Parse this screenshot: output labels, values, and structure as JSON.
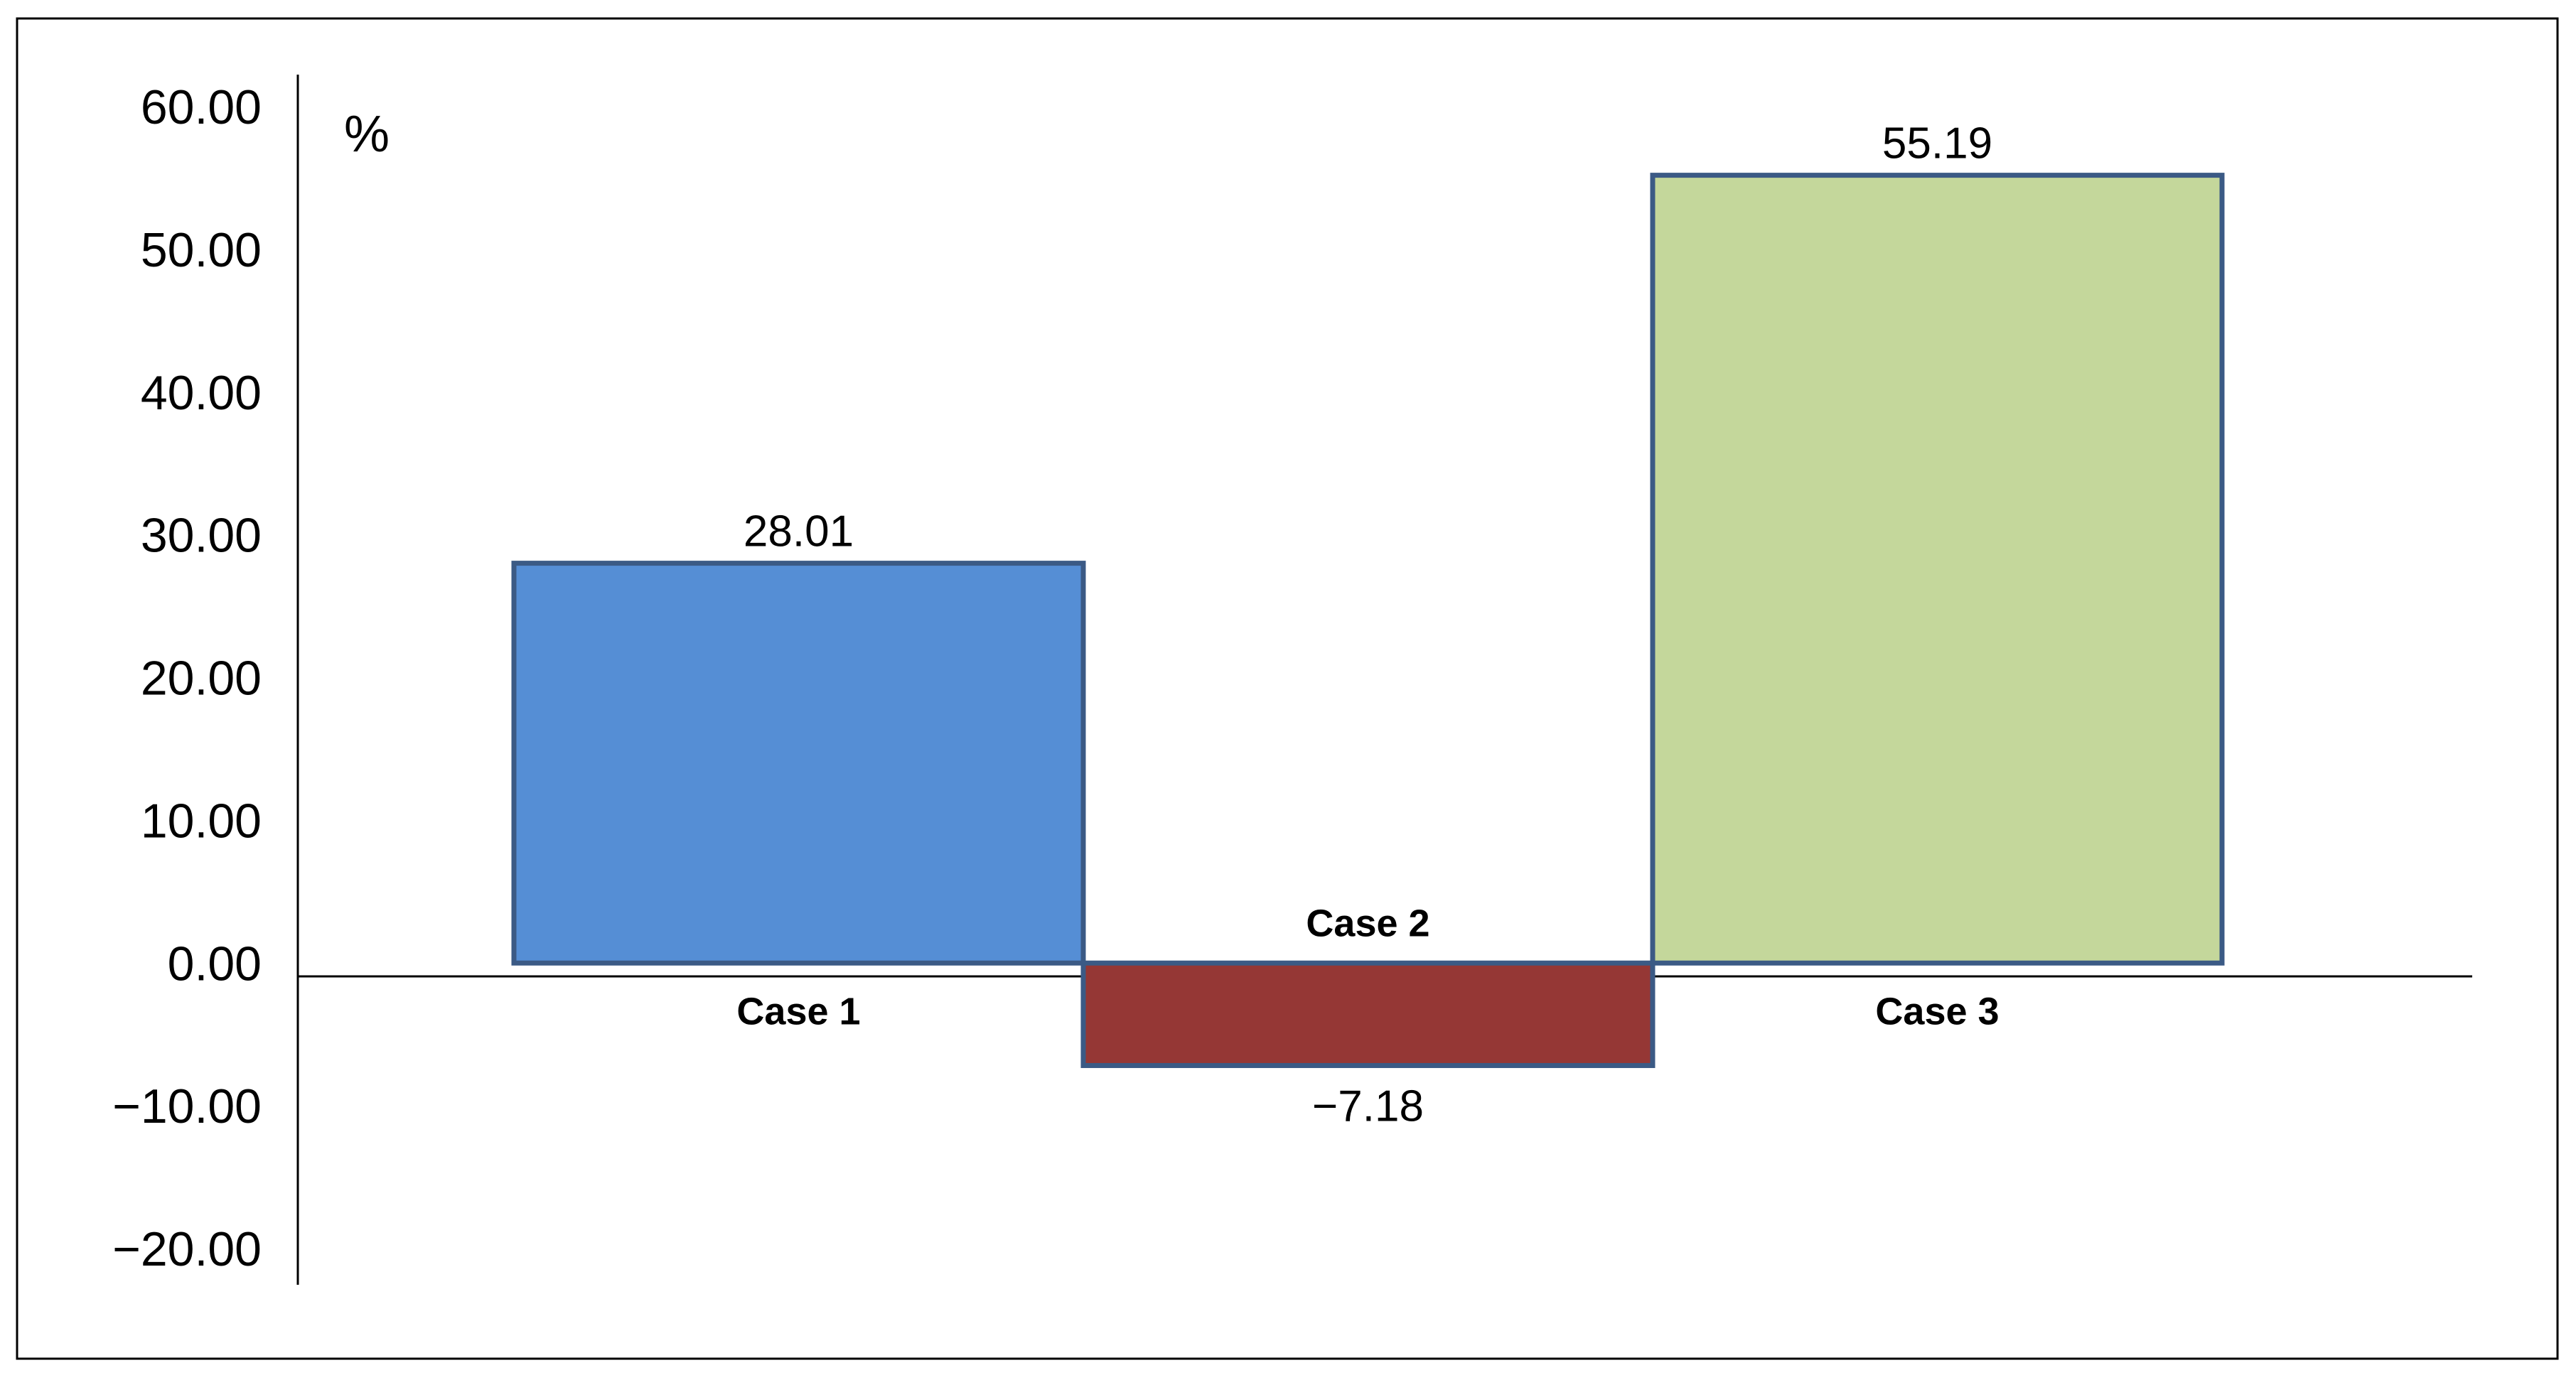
{
  "chart_data": {
    "type": "bar",
    "categories": [
      "Case 1",
      "Case 2",
      "Case 3"
    ],
    "values": [
      28.01,
      -7.18,
      55.19
    ],
    "value_labels": [
      "28.01",
      "−7.18",
      "55.19"
    ],
    "colors": [
      "#558ed5",
      "#953735",
      "#c4d79b"
    ],
    "bar_edge_color": "#3b5a85",
    "y_unit": "%",
    "ylim": [
      -20,
      60
    ],
    "y_ticks": [
      60,
      50,
      40,
      30,
      20,
      10,
      0,
      -10,
      -20
    ],
    "y_tick_labels": [
      "60.00",
      "50.00",
      "40.00",
      "30.00",
      "20.00",
      "10.00",
      "0.00",
      "−10.00",
      "−20.00"
    ],
    "grid": false,
    "title": "",
    "xlabel": "",
    "ylabel": ""
  }
}
